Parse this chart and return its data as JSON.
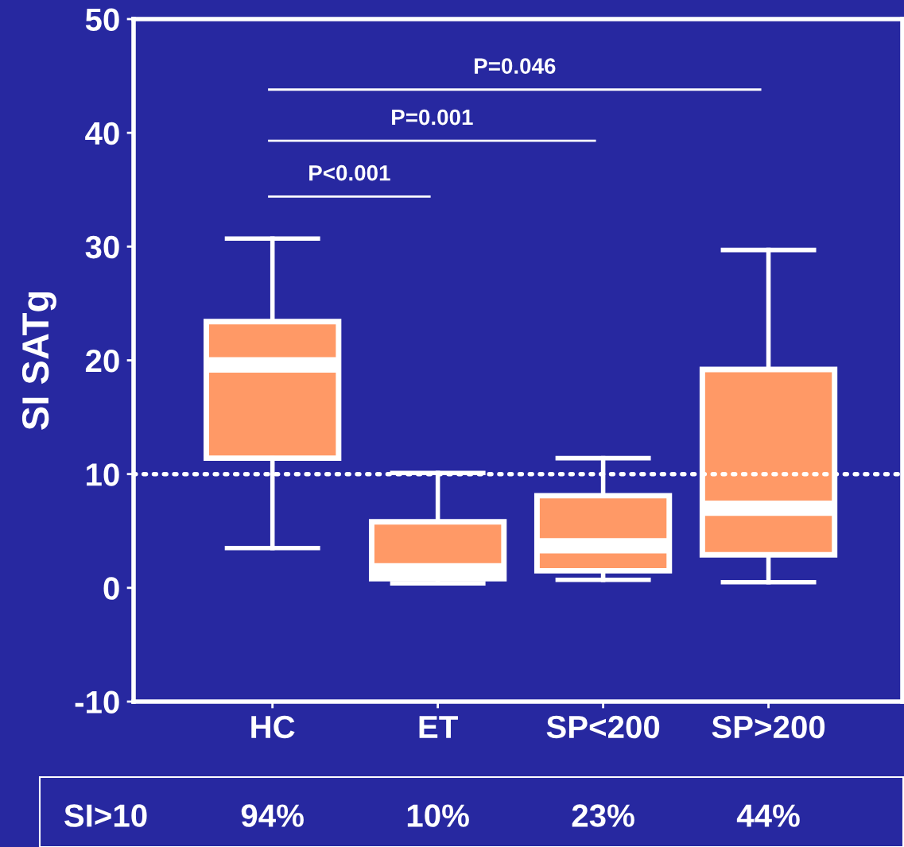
{
  "chart_data": {
    "type": "box",
    "ylabel": "SI SATg",
    "categories": [
      "HC",
      "ET",
      "SP<200",
      "SP>200"
    ],
    "boxes": [
      {
        "low": 3.5,
        "q1": 11.4,
        "median": 19.6,
        "q3": 23.4,
        "high": 30.7
      },
      {
        "low": 0.4,
        "q1": 0.8,
        "median": 1.5,
        "q3": 5.8,
        "high": 10.1
      },
      {
        "low": 0.7,
        "q1": 1.5,
        "median": 3.7,
        "q3": 8.1,
        "high": 11.4
      },
      {
        "low": 0.5,
        "q1": 2.9,
        "median": 7.0,
        "q3": 19.2,
        "high": 29.7
      }
    ],
    "color": "#ff9966",
    "ylim": [
      -10,
      50
    ],
    "yticks": [
      -10,
      0,
      10,
      20,
      30,
      40,
      50
    ],
    "ref_lines": [
      {
        "axis": "y",
        "value": 10,
        "color": "#ffffff",
        "line_style": "dotted"
      }
    ],
    "annotations": [
      "P<0.001",
      "P=0.001",
      "P=0.046",
      "SI>10",
      "94%",
      "10%",
      "23%",
      "44%"
    ],
    "grid": false
  }
}
